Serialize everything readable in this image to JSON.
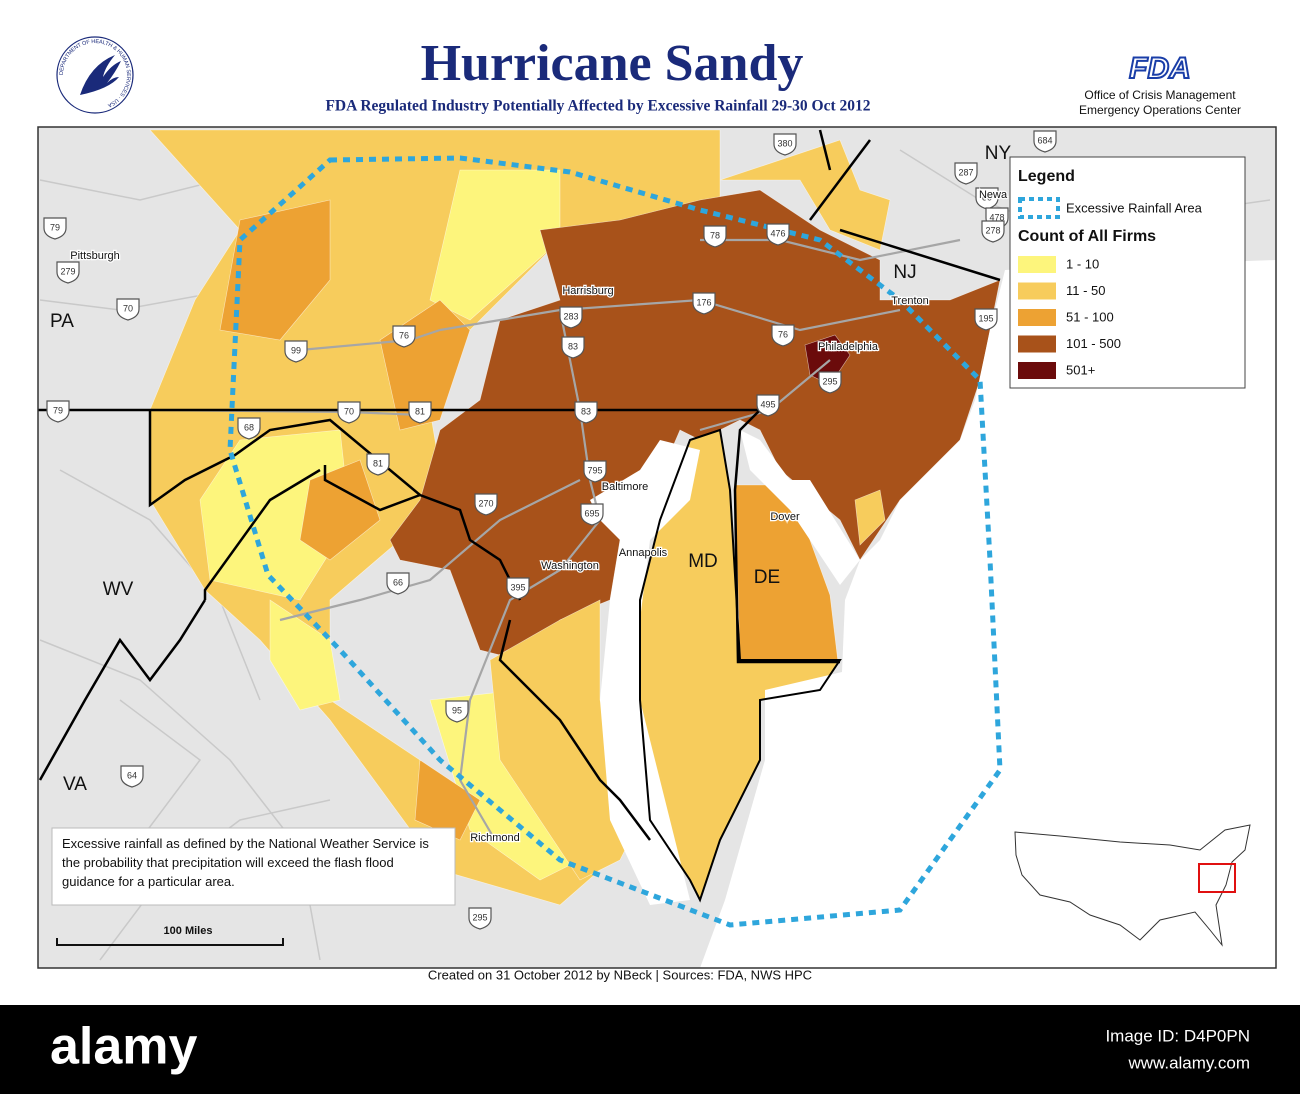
{
  "header": {
    "title": "Hurricane Sandy",
    "subtitle": "FDA Regulated Industry Potentially Affected by Excessive Rainfall 29-30 Oct 2012",
    "seal_text": "DEPARTMENT OF HEALTH & HUMAN SERVICES · USA",
    "agency": "FDA",
    "office": [
      "Office of Crisis Management",
      "Emergency Operations Center"
    ]
  },
  "legend": {
    "title": "Legend",
    "rainfall": "Excessive Rainfall Area",
    "rainfall_color": "#2ea6dc",
    "count_title": "Count of All Firms",
    "classes": [
      {
        "label": "1 - 10",
        "color": "#fdf57c"
      },
      {
        "label": "11 - 50",
        "color": "#f7cc5c"
      },
      {
        "label": "51 - 100",
        "color": "#eda233"
      },
      {
        "label": "101 - 500",
        "color": "#a8521a"
      },
      {
        "label": "501+",
        "color": "#6b0b0b"
      }
    ]
  },
  "states": [
    "NY",
    "NJ",
    "PA",
    "MD",
    "DE",
    "WV",
    "VA"
  ],
  "cities": [
    "Pittsburgh",
    "Harrisburg",
    "Trenton",
    "Philadelphia",
    "Baltimore",
    "Dover",
    "Annapolis",
    "Washington",
    "Richmond",
    "Newa"
  ],
  "highways": [
    "380",
    "684",
    "287",
    "80",
    "478",
    "278",
    "79",
    "279",
    "70",
    "99",
    "76",
    "283",
    "176",
    "78",
    "476",
    "83",
    "195",
    "295",
    "76",
    "495",
    "79",
    "70",
    "81",
    "83",
    "68",
    "81",
    "795",
    "695",
    "270",
    "66",
    "395",
    "95",
    "64",
    "295"
  ],
  "note": "Excessive rainfall as defined by the National Weather Service is the probability that precipitation will exceed the flash flood guidance for a particular area.",
  "scale": "100 Miles",
  "credit": "Created on 31 October 2012 by NBeck  |  Sources: FDA, NWS HPC",
  "watermark": {
    "brand": "alamy",
    "id": "Image ID: D4P0PN",
    "url": "www.alamy.com"
  }
}
